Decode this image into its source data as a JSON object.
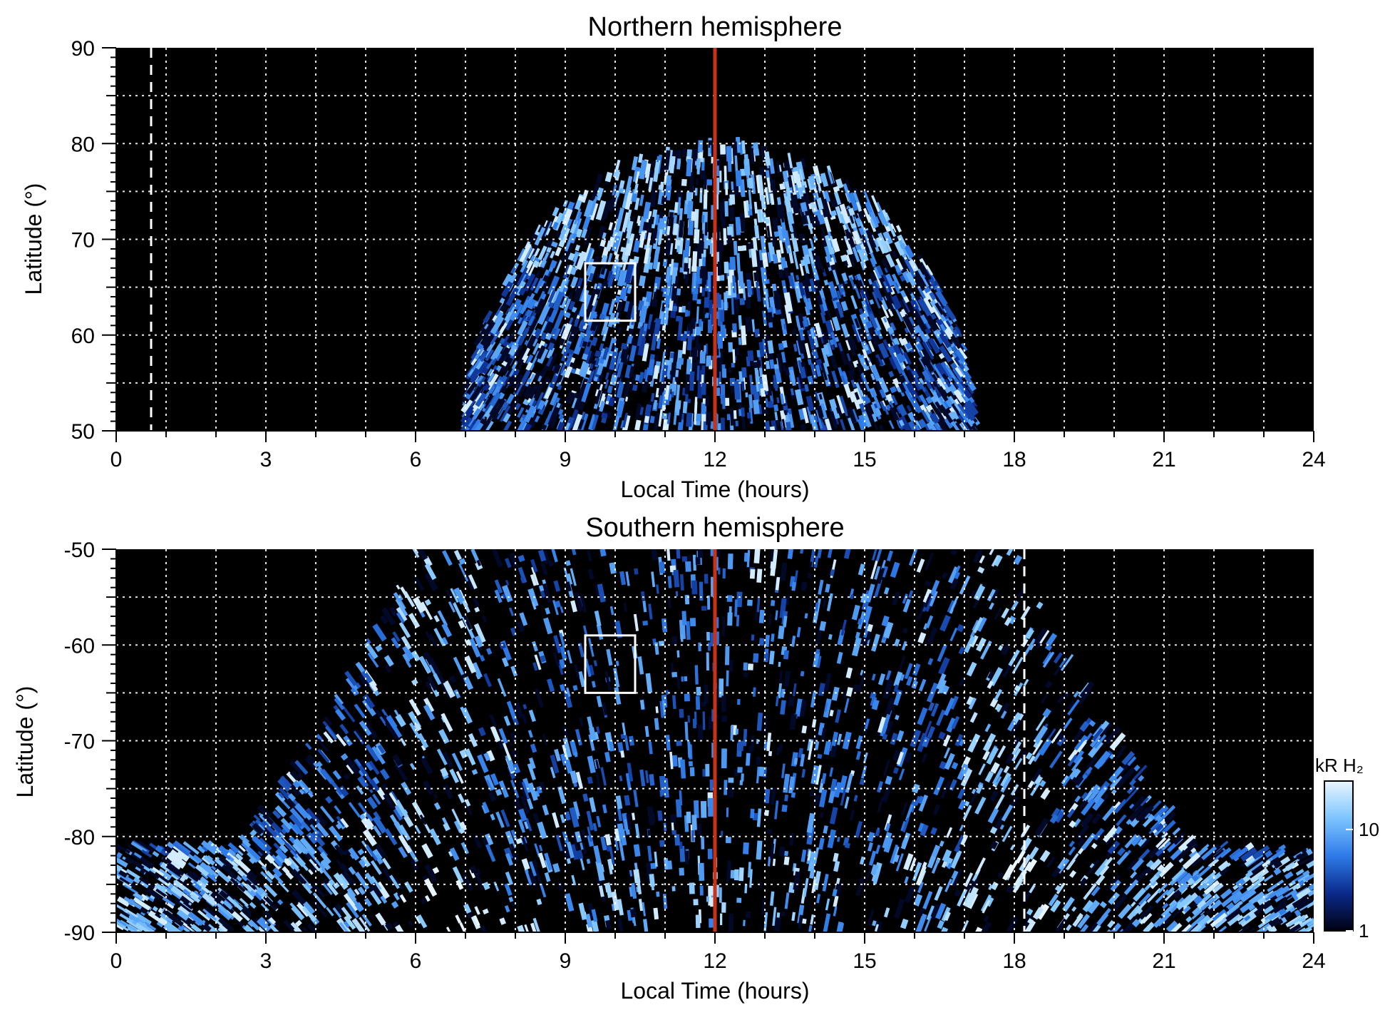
{
  "chart_data": [
    {
      "type": "heatmap",
      "title": "Northern hemisphere",
      "xlabel": "Local Time (hours)",
      "ylabel": "Latitude (°)",
      "xlim": [
        0,
        24
      ],
      "ylim": [
        50,
        90
      ],
      "xticks": [
        "0",
        "3",
        "6",
        "9",
        "12",
        "15",
        "18",
        "21",
        "24"
      ],
      "yticks": [
        "50",
        "60",
        "70",
        "80",
        "90"
      ],
      "grid": true,
      "emission_region": {
        "lt_range": [
          7.0,
          17.2
        ],
        "lat_max": 80
      },
      "bright_oval_lat": [
        69,
        73
      ],
      "reference_line_lt": 12,
      "dashed_line_lt": 0.7,
      "box": {
        "lt": [
          9.4,
          10.4
        ],
        "lat": [
          61.5,
          67.5
        ]
      }
    },
    {
      "type": "heatmap",
      "title": "Southern hemisphere",
      "xlabel": "Local Time (hours)",
      "ylabel": "Latitude (°)",
      "xlim": [
        0,
        24
      ],
      "ylim": [
        -90,
        -50
      ],
      "xticks": [
        "0",
        "3",
        "6",
        "9",
        "12",
        "15",
        "18",
        "21",
        "24"
      ],
      "yticks": [
        "-90",
        "-80",
        "-70",
        "-60",
        "-50"
      ],
      "grid": true,
      "emission_region": {
        "lt_range": [
          0,
          24
        ],
        "lat_min": -90
      },
      "bright_bands_lt": [
        6.5,
        17.8
      ],
      "reference_line_lt": 12,
      "dashed_line_lt": 18.2,
      "box": {
        "lt": [
          9.4,
          10.4
        ],
        "lat": [
          -65,
          -59
        ]
      }
    }
  ],
  "colorbar": {
    "label": "kR H₂",
    "scale": "log",
    "range": [
      1,
      30
    ],
    "ticks": [
      "1",
      "10"
    ],
    "colors": [
      "#000010",
      "#0a2a8a",
      "#2e7be8",
      "#7cc4ff",
      "#eaf6ff"
    ]
  },
  "colors": {
    "reference_line": "#c83218",
    "box": "#ffffff",
    "grid": "#ffffff",
    "background": "#000000"
  }
}
